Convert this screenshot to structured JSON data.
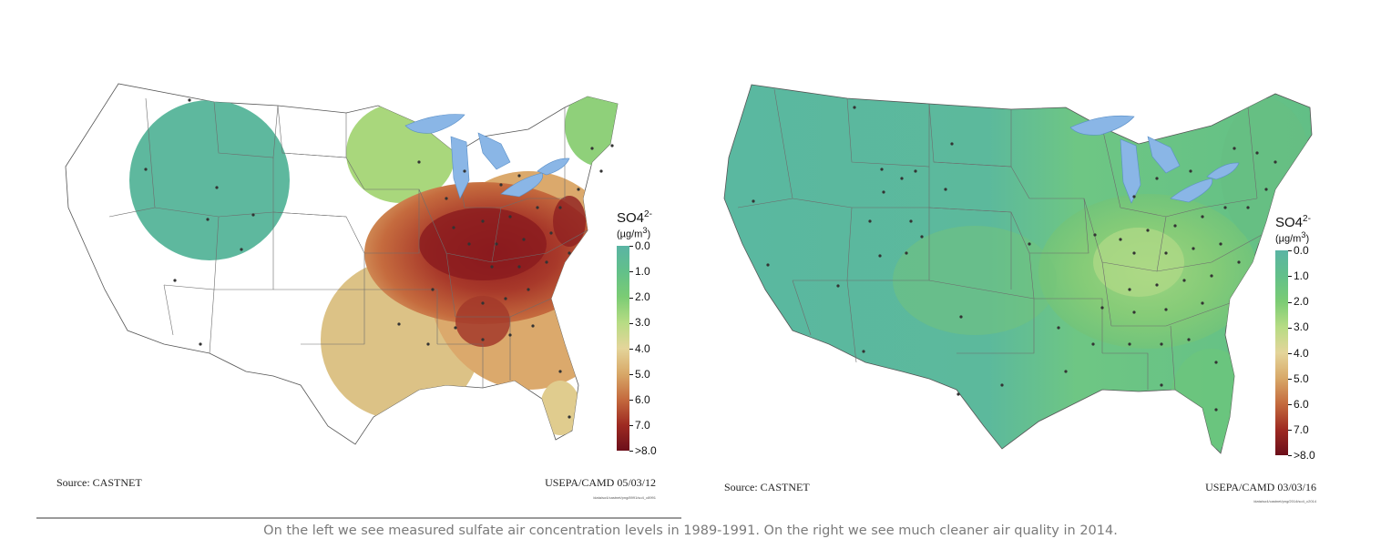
{
  "left_map": {
    "legend_title": "SO4",
    "legend_title_sup": "2-",
    "legend_units": "(µg/m",
    "legend_units_sup": "3",
    "legend_units_close": ")",
    "legend_ticks": [
      "0.0",
      "1.0",
      "2.0",
      "3.0",
      "4.0",
      "5.0",
      "6.0",
      "7.0",
      ">8.0"
    ],
    "source": "Source: CASTNET",
    "credit": "USEPA/CAMD 05/03/12",
    "file_ref": "/data/so4/castnet/png/8991/so4_c8991"
  },
  "right_map": {
    "legend_title": "SO4",
    "legend_title_sup": "2-",
    "legend_units": "(µg/m",
    "legend_units_sup": "3",
    "legend_units_close": ")",
    "legend_ticks": [
      "0.0",
      "1.0",
      "2.0",
      "3.0",
      "4.0",
      "5.0",
      "6.0",
      "7.0",
      ">8.0"
    ],
    "source": "Source: CASTNET",
    "credit": "USEPA/CAMD 03/03/16",
    "file_ref": "/data/so4/castnet/png/2014/so4_c2014"
  },
  "legend_colors": [
    "#5ab4a4",
    "#62c08a",
    "#7bcc74",
    "#b7dc84",
    "#e4d59a",
    "#d8a868",
    "#c46a3e",
    "#9e2a22",
    "#6b0f1a"
  ],
  "colors": {
    "lake": "#8ab6e6",
    "state_border": "#6d6d6d",
    "site_dot": "#333333"
  },
  "caption": "On the left we see measured sulfate air concentration levels in 1989-1991. On the right we see much cleaner air quality in 2014."
}
